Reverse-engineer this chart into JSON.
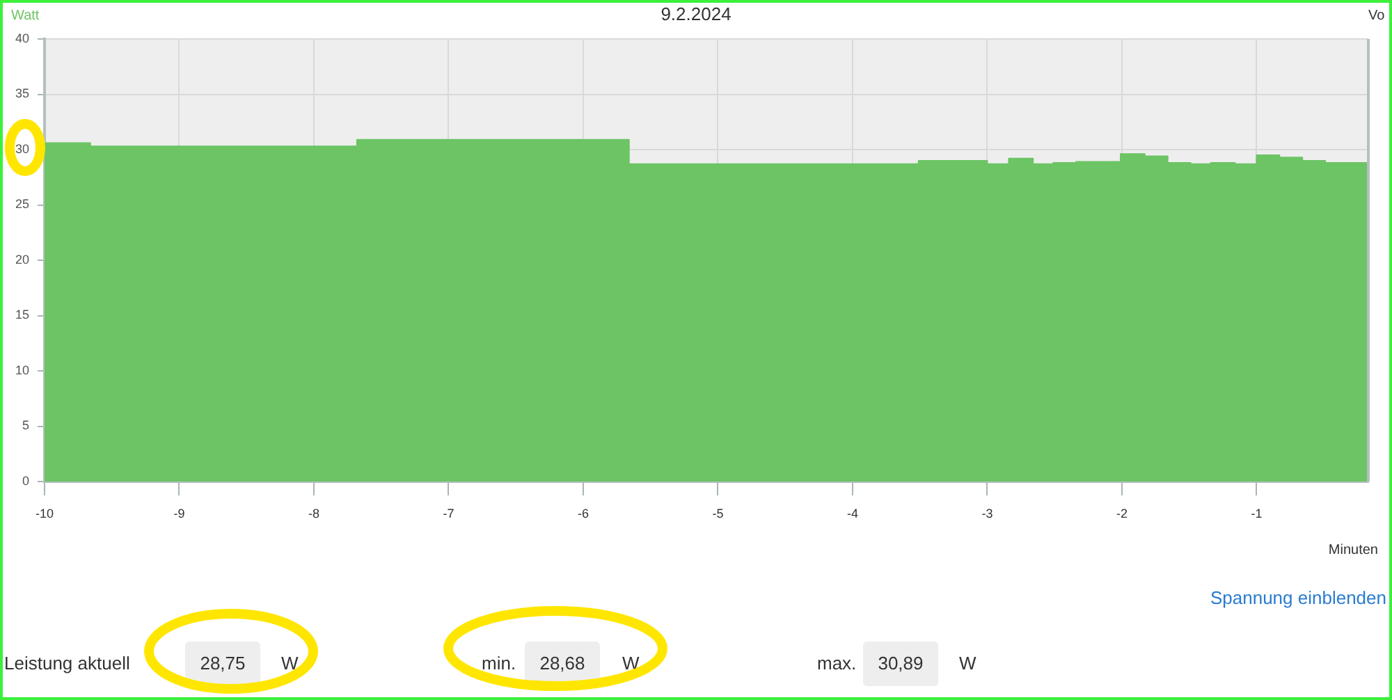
{
  "chart_data": {
    "type": "area",
    "title": "9.2.2024",
    "xlabel": "Minuten",
    "ylabel": "Watt",
    "y2label": "Vo",
    "x": [
      -10,
      -9.66,
      -9.66,
      -7.68,
      -7.68,
      -5.66,
      -5.66,
      -3.51,
      -3.51,
      -3,
      -3,
      -2.84,
      -2.84,
      -2.66,
      -2.66,
      -2.51,
      -2.51,
      -2.34,
      -2.34,
      -2.01,
      -2.01,
      -1.83,
      -1.83,
      -1.66,
      -1.66,
      -1.49,
      -1.49,
      -1.34,
      -1.34,
      -1.16,
      -1.16,
      -1,
      -1,
      -0.83,
      -0.83,
      -0.66,
      -0.66,
      -0.49,
      -0.49,
      -0.17
    ],
    "values": [
      30.6,
      30.6,
      30.3,
      30.3,
      30.9,
      30.9,
      28.7,
      28.7,
      29.0,
      29.0,
      28.7,
      28.7,
      29.2,
      29.2,
      28.7,
      28.7,
      28.8,
      28.8,
      28.9,
      28.9,
      29.6,
      29.6,
      29.4,
      29.4,
      28.8,
      28.8,
      28.7,
      28.7,
      28.8,
      28.8,
      28.7,
      28.7,
      29.5,
      29.5,
      29.3,
      29.3,
      29.0,
      29.0,
      28.8,
      28.8
    ],
    "color": "#6cc464",
    "xlim": [
      -10,
      -0.17
    ],
    "ylim": [
      0,
      40
    ],
    "xticks": [
      -10,
      -9,
      -8,
      -7,
      -6,
      -5,
      -4,
      -3,
      -2,
      -1
    ],
    "yticks": [
      0,
      5,
      10,
      15,
      20,
      25,
      30,
      35,
      40
    ],
    "grid": true,
    "annotations": [
      "Spannung einblenden",
      "Leistung aktuell",
      "28,75",
      "W",
      "min.",
      "28,68",
      "W",
      "max.",
      "30,89",
      "W"
    ]
  }
}
